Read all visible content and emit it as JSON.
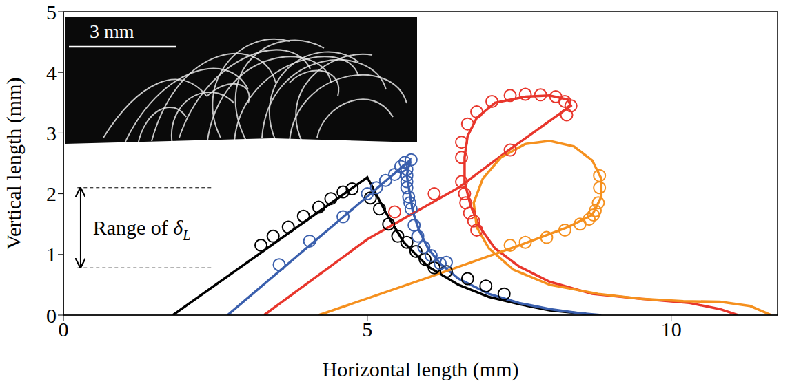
{
  "chart_data": {
    "type": "line",
    "x_label": "Horizontal length (mm)",
    "y_label": "Vertical length (mm)",
    "xlim": [
      0,
      11.75
    ],
    "xticks": [
      0,
      5,
      10
    ],
    "ylim": [
      0,
      5
    ],
    "yticks": [
      0,
      1,
      2,
      3,
      4,
      5
    ],
    "grid": false,
    "series": [
      {
        "type": "line",
        "color": "#000000",
        "line_style": "solid",
        "x": [
          1.8,
          5.0,
          5.3,
          5.6,
          6.0,
          6.5,
          7.0,
          7.5,
          8.0,
          8.6
        ],
        "values": [
          0,
          2.27,
          1.7,
          1.2,
          0.8,
          0.5,
          0.3,
          0.18,
          0.08,
          0.02
        ]
      },
      {
        "type": "scatter",
        "color": "#000000",
        "marker": "open_circle",
        "x": [
          3.25,
          3.45,
          3.7,
          3.95,
          4.2,
          4.4,
          4.6,
          4.75,
          5.05,
          5.2,
          5.35,
          5.5,
          5.65,
          5.8,
          5.95,
          6.1,
          6.3,
          6.65,
          6.95,
          7.25
        ],
        "values": [
          1.15,
          1.3,
          1.45,
          1.63,
          1.78,
          1.92,
          2.03,
          2.08,
          1.93,
          1.75,
          1.5,
          1.3,
          1.2,
          1.05,
          0.92,
          0.78,
          0.72,
          0.6,
          0.48,
          0.35
        ]
      },
      {
        "type": "line",
        "color": "#3a5fad",
        "line_style": "solid",
        "x": [
          2.7,
          5.7,
          5.65,
          5.7,
          5.75,
          5.85,
          6.0,
          6.2,
          6.5,
          7.0,
          7.5,
          8.0,
          8.5,
          8.85
        ],
        "values": [
          0,
          2.55,
          2.3,
          2.0,
          1.7,
          1.4,
          1.1,
          0.85,
          0.6,
          0.35,
          0.2,
          0.1,
          0.03,
          0
        ]
      },
      {
        "type": "scatter",
        "color": "#3a5fad",
        "marker": "open_circle",
        "x": [
          3.55,
          4.05,
          4.6,
          5.0,
          5.15,
          5.3,
          5.45,
          5.55,
          5.62,
          5.72,
          5.65,
          5.65,
          5.65,
          5.65,
          5.68,
          5.7,
          5.72,
          5.77,
          5.83,
          5.93,
          6.05,
          6.2,
          6.3
        ],
        "values": [
          0.83,
          1.22,
          1.62,
          2.0,
          2.1,
          2.22,
          2.32,
          2.45,
          2.52,
          2.56,
          2.4,
          2.3,
          2.2,
          2.1,
          1.95,
          1.85,
          1.75,
          1.48,
          1.3,
          1.12,
          0.98,
          0.85,
          0.87
        ]
      },
      {
        "type": "line",
        "color": "#e8362c",
        "line_style": "solid",
        "x": [
          3.3,
          5.0,
          6.5,
          7.3,
          8.0,
          8.35,
          8.3,
          8.0,
          7.6,
          7.1,
          6.8,
          6.65,
          6.6,
          6.6,
          6.7,
          6.85,
          7.1,
          7.5,
          8.0,
          8.7,
          9.5,
          10.3,
          10.8,
          11.1
        ],
        "values": [
          0,
          1.25,
          2.1,
          2.7,
          3.2,
          3.45,
          3.55,
          3.62,
          3.6,
          3.5,
          3.25,
          2.95,
          2.6,
          2.2,
          1.8,
          1.45,
          1.1,
          0.8,
          0.55,
          0.35,
          0.27,
          0.2,
          0.1,
          0
        ]
      },
      {
        "type": "scatter",
        "color": "#e8362c",
        "marker": "open_circle",
        "x": [
          5.45,
          6.1,
          6.55,
          7.35,
          6.55,
          6.55,
          6.65,
          6.8,
          7.05,
          7.35,
          7.6,
          7.85,
          8.1,
          8.25,
          8.35,
          8.28,
          6.6,
          6.62,
          6.68,
          6.75,
          6.8
        ],
        "values": [
          1.7,
          2.0,
          2.2,
          2.72,
          2.6,
          2.85,
          3.15,
          3.35,
          3.52,
          3.62,
          3.64,
          3.63,
          3.6,
          3.52,
          3.45,
          3.3,
          2.0,
          1.85,
          1.68,
          1.55,
          1.4
        ]
      },
      {
        "type": "line",
        "color": "#f5901e",
        "line_style": "solid",
        "x": [
          4.2,
          6.0,
          7.5,
          8.3,
          8.7,
          8.85,
          8.85,
          8.7,
          8.4,
          8.0,
          7.6,
          7.2,
          6.9,
          6.75,
          6.8,
          7.0,
          7.4,
          8.0,
          8.8,
          9.5,
          10.2,
          10.8,
          11.3,
          11.65
        ],
        "values": [
          0,
          0.62,
          1.15,
          1.45,
          1.65,
          1.95,
          2.25,
          2.55,
          2.78,
          2.87,
          2.82,
          2.6,
          2.25,
          1.85,
          1.45,
          1.1,
          0.75,
          0.5,
          0.35,
          0.27,
          0.23,
          0.22,
          0.15,
          0
        ]
      },
      {
        "type": "scatter",
        "color": "#f5901e",
        "marker": "open_circle",
        "x": [
          7.35,
          7.6,
          7.95,
          8.25,
          8.5,
          8.65,
          8.72,
          8.75,
          8.8,
          8.82,
          8.82
        ],
        "values": [
          1.15,
          1.2,
          1.28,
          1.4,
          1.5,
          1.58,
          1.65,
          1.72,
          1.85,
          2.1,
          2.3
        ]
      }
    ],
    "annotations": [
      {
        "text": "Range of ",
        "symbol": "δ",
        "subscript": "L",
        "y_range": [
          0.78,
          2.1
        ],
        "x_range": [
          0.23,
          2.47
        ],
        "arrow_x": 0.28
      }
    ],
    "inset_image": {
      "scale_bar": "3 mm"
    }
  }
}
